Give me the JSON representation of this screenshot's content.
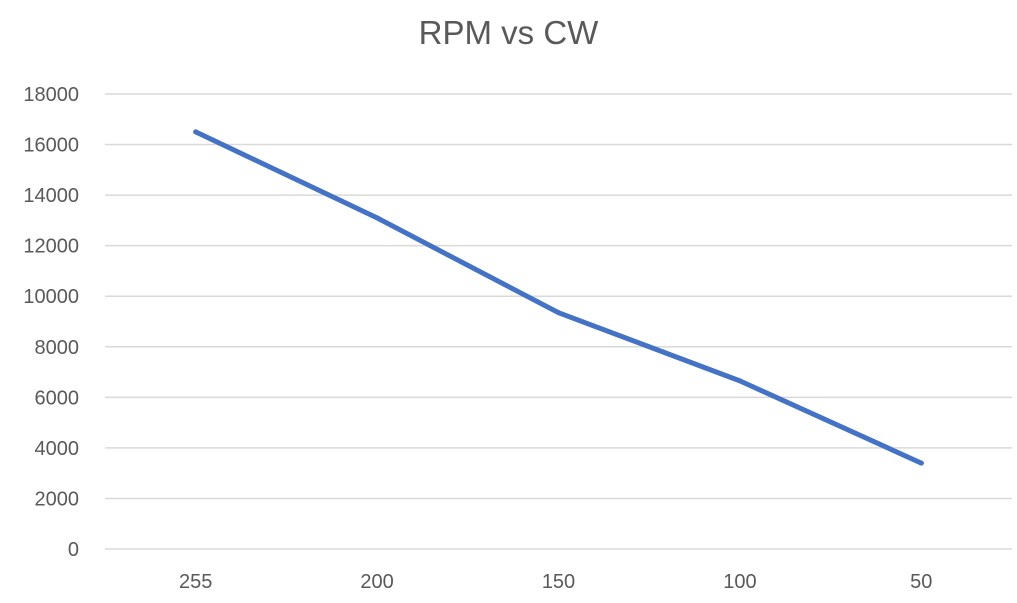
{
  "chart_data": {
    "type": "line",
    "title": "RPM vs CW",
    "xlabel": "",
    "ylabel": "",
    "categories": [
      "255",
      "200",
      "150",
      "100",
      "50"
    ],
    "series": [
      {
        "values": [
          16500,
          13100,
          9350,
          6650,
          3400
        ]
      }
    ],
    "ylim": [
      0,
      18000
    ],
    "yticks": [
      "0",
      "2000",
      "4000",
      "6000",
      "8000",
      "10000",
      "12000",
      "14000",
      "16000",
      "18000"
    ],
    "grid": true,
    "legend": "none",
    "colors": {
      "line": "#4472C4",
      "grid": "#d9d9d9",
      "axis": "#d9d9d9",
      "text": "#595959"
    }
  }
}
